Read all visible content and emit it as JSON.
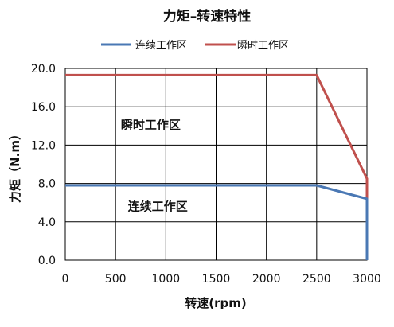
{
  "chart_data": {
    "type": "line",
    "title": "力矩–转速特性",
    "xlabel": "转速(rpm)",
    "ylabel": "力矩（N.m）",
    "xlim": [
      0,
      3000
    ],
    "ylim": [
      0,
      20
    ],
    "x_ticks": [
      "0",
      "500",
      "1000",
      "1500",
      "2000",
      "2500",
      "3000"
    ],
    "y_ticks": [
      "0.0",
      "4.0",
      "8.0",
      "12.0",
      "16.0",
      "20.0"
    ],
    "grid": true,
    "legend_position": "top",
    "series": [
      {
        "name": "连续工作区",
        "color": "#4a78b4",
        "points": [
          [
            0,
            7.8
          ],
          [
            2500,
            7.8
          ],
          [
            3000,
            6.4
          ],
          [
            3000,
            0
          ]
        ]
      },
      {
        "name": "瞬时工作区",
        "color": "#c0504d",
        "points": [
          [
            0,
            19.3
          ],
          [
            2500,
            19.3
          ],
          [
            3000,
            8.5
          ],
          [
            3000,
            0
          ]
        ]
      }
    ],
    "annotations": [
      {
        "text": "瞬时工作区",
        "x": 850,
        "y": 13.7
      },
      {
        "text": "连续工作区",
        "x": 920,
        "y": 5.2
      }
    ]
  }
}
